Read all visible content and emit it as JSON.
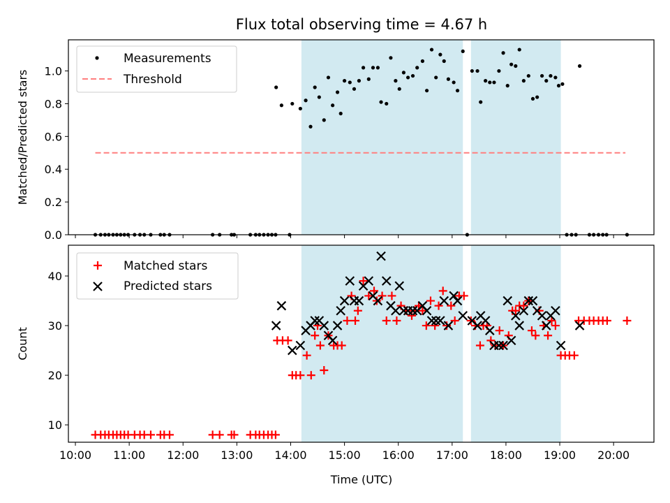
{
  "chart_data": {
    "type": "scatter",
    "title": "Flux total observing time = 4.67 h",
    "xlabel": "Time (UTC)",
    "x_tick_labels": [
      "10:00",
      "11:00",
      "12:00",
      "13:00",
      "14:00",
      "15:00",
      "16:00",
      "17:00",
      "18:00",
      "19:00",
      "20:00"
    ],
    "x_ticks_hours": [
      10,
      11,
      12,
      13,
      14,
      15,
      16,
      17,
      18,
      19,
      20
    ],
    "xlim_hours": [
      9.87,
      20.75
    ],
    "observing_windows_hours": [
      [
        14.2,
        17.2
      ],
      [
        17.35,
        19.02
      ]
    ],
    "colors": {
      "window": "#add8e6",
      "measurements": "#000000",
      "threshold": "#ff7f7f",
      "matched": "#ff0000",
      "predicted": "#000000"
    },
    "top": {
      "ylabel": "Matched/Predicted stars",
      "ylim": [
        0,
        1.19
      ],
      "y_ticks": [
        0,
        0.2,
        0.4,
        0.6,
        0.8,
        1.0
      ],
      "y_tick_labels": [
        "0.0",
        "0.2",
        "0.4",
        "0.6",
        "0.8",
        "1.0"
      ],
      "legend": {
        "position": "upper-left",
        "entries": [
          "Measurements",
          "Threshold"
        ]
      },
      "threshold": {
        "value": 0.5,
        "x_range_hours": [
          10.37,
          20.22
        ]
      },
      "measurements": [
        [
          10.37,
          0
        ],
        [
          10.47,
          0
        ],
        [
          10.55,
          0
        ],
        [
          10.62,
          0
        ],
        [
          10.7,
          0
        ],
        [
          10.77,
          0
        ],
        [
          10.84,
          0
        ],
        [
          10.91,
          0
        ],
        [
          10.98,
          0
        ],
        [
          11.1,
          0
        ],
        [
          11.2,
          0
        ],
        [
          11.28,
          0
        ],
        [
          11.4,
          0
        ],
        [
          11.58,
          0
        ],
        [
          11.65,
          0
        ],
        [
          11.75,
          0
        ],
        [
          12.55,
          0
        ],
        [
          12.68,
          0
        ],
        [
          12.9,
          0
        ],
        [
          12.95,
          0
        ],
        [
          13.25,
          0
        ],
        [
          13.35,
          0
        ],
        [
          13.42,
          0
        ],
        [
          13.5,
          0
        ],
        [
          13.58,
          0
        ],
        [
          13.65,
          0
        ],
        [
          13.72,
          0
        ],
        [
          13.98,
          0
        ],
        [
          13.73,
          0.9
        ],
        [
          13.83,
          0.79
        ],
        [
          14.03,
          0.8
        ],
        [
          14.18,
          0.77
        ],
        [
          14.28,
          0.82
        ],
        [
          14.37,
          0.66
        ],
        [
          14.45,
          0.9
        ],
        [
          14.53,
          0.84
        ],
        [
          14.62,
          0.7
        ],
        [
          14.7,
          0.96
        ],
        [
          14.78,
          0.79
        ],
        [
          14.87,
          0.87
        ],
        [
          14.93,
          0.74
        ],
        [
          15.0,
          0.94
        ],
        [
          15.1,
          0.93
        ],
        [
          15.18,
          0.89
        ],
        [
          15.27,
          0.94
        ],
        [
          15.35,
          1.02
        ],
        [
          15.45,
          0.95
        ],
        [
          15.53,
          1.02
        ],
        [
          15.62,
          1.02
        ],
        [
          15.68,
          0.81
        ],
        [
          15.78,
          0.8
        ],
        [
          15.86,
          1.08
        ],
        [
          15.95,
          0.94
        ],
        [
          16.02,
          0.89
        ],
        [
          16.1,
          0.99
        ],
        [
          16.18,
          0.96
        ],
        [
          16.27,
          0.97
        ],
        [
          16.35,
          1.02
        ],
        [
          16.45,
          1.06
        ],
        [
          16.53,
          0.88
        ],
        [
          16.62,
          1.13
        ],
        [
          16.7,
          0.96
        ],
        [
          16.78,
          1.1
        ],
        [
          16.85,
          1.06
        ],
        [
          16.93,
          0.95
        ],
        [
          17.03,
          0.93
        ],
        [
          17.1,
          0.88
        ],
        [
          17.2,
          1.12
        ],
        [
          17.28,
          0
        ],
        [
          17.37,
          1.0
        ],
        [
          17.47,
          1.0
        ],
        [
          17.53,
          0.81
        ],
        [
          17.62,
          0.94
        ],
        [
          17.7,
          0.93
        ],
        [
          17.78,
          0.93
        ],
        [
          17.87,
          1.0
        ],
        [
          17.95,
          1.11
        ],
        [
          18.03,
          0.91
        ],
        [
          18.1,
          1.04
        ],
        [
          18.18,
          1.03
        ],
        [
          18.25,
          1.13
        ],
        [
          18.33,
          0.94
        ],
        [
          18.42,
          0.97
        ],
        [
          18.5,
          0.83
        ],
        [
          18.58,
          0.84
        ],
        [
          18.67,
          0.97
        ],
        [
          18.75,
          0.94
        ],
        [
          18.83,
          0.97
        ],
        [
          18.92,
          0.96
        ],
        [
          18.98,
          0.91
        ],
        [
          19.05,
          0.92
        ],
        [
          19.13,
          0
        ],
        [
          19.22,
          0
        ],
        [
          19.3,
          0
        ],
        [
          19.37,
          1.03
        ],
        [
          19.55,
          0
        ],
        [
          19.63,
          0
        ],
        [
          19.72,
          0
        ],
        [
          19.8,
          0
        ],
        [
          19.87,
          0
        ],
        [
          20.25,
          0
        ]
      ]
    },
    "bottom": {
      "ylabel": "Count",
      "ylim": [
        6.5,
        46.2
      ],
      "y_ticks": [
        10,
        20,
        30,
        40
      ],
      "y_tick_labels": [
        "10",
        "20",
        "30",
        "40"
      ],
      "legend": {
        "position": "upper-left",
        "entries": [
          "Matched stars",
          "Predicted stars"
        ]
      },
      "matched": [
        [
          10.37,
          8
        ],
        [
          10.47,
          8
        ],
        [
          10.55,
          8
        ],
        [
          10.62,
          8
        ],
        [
          10.7,
          8
        ],
        [
          10.77,
          8
        ],
        [
          10.84,
          8
        ],
        [
          10.91,
          8
        ],
        [
          10.98,
          8
        ],
        [
          11.1,
          8
        ],
        [
          11.2,
          8
        ],
        [
          11.28,
          8
        ],
        [
          11.4,
          8
        ],
        [
          11.58,
          8
        ],
        [
          11.65,
          8
        ],
        [
          11.75,
          8
        ],
        [
          12.55,
          8
        ],
        [
          12.68,
          8
        ],
        [
          12.9,
          8
        ],
        [
          12.95,
          8
        ],
        [
          13.25,
          8
        ],
        [
          13.35,
          8
        ],
        [
          13.42,
          8
        ],
        [
          13.5,
          8
        ],
        [
          13.58,
          8
        ],
        [
          13.65,
          8
        ],
        [
          13.72,
          8
        ],
        [
          13.75,
          27
        ],
        [
          13.85,
          27
        ],
        [
          13.95,
          27
        ],
        [
          14.03,
          20
        ],
        [
          14.1,
          20
        ],
        [
          14.18,
          20
        ],
        [
          14.3,
          24
        ],
        [
          14.38,
          20
        ],
        [
          14.45,
          28
        ],
        [
          14.5,
          30
        ],
        [
          14.55,
          26
        ],
        [
          14.62,
          21
        ],
        [
          14.7,
          28
        ],
        [
          14.8,
          26
        ],
        [
          14.87,
          26
        ],
        [
          14.95,
          26
        ],
        [
          15.05,
          31
        ],
        [
          15.13,
          36
        ],
        [
          15.2,
          31
        ],
        [
          15.25,
          33
        ],
        [
          15.35,
          39
        ],
        [
          15.45,
          36
        ],
        [
          15.55,
          37
        ],
        [
          15.6,
          35
        ],
        [
          15.7,
          36
        ],
        [
          15.78,
          31
        ],
        [
          15.88,
          36
        ],
        [
          15.97,
          31
        ],
        [
          16.05,
          34
        ],
        [
          16.15,
          33
        ],
        [
          16.25,
          32
        ],
        [
          16.3,
          33
        ],
        [
          16.38,
          34
        ],
        [
          16.45,
          33
        ],
        [
          16.52,
          30
        ],
        [
          16.6,
          35
        ],
        [
          16.68,
          30
        ],
        [
          16.75,
          34
        ],
        [
          16.83,
          37
        ],
        [
          16.9,
          30
        ],
        [
          16.98,
          34
        ],
        [
          17.05,
          31
        ],
        [
          17.13,
          36
        ],
        [
          17.22,
          36
        ],
        [
          17.35,
          31
        ],
        [
          17.43,
          30
        ],
        [
          17.52,
          26
        ],
        [
          17.58,
          30
        ],
        [
          17.65,
          30
        ],
        [
          17.72,
          27
        ],
        [
          17.8,
          26
        ],
        [
          17.88,
          29
        ],
        [
          17.95,
          26
        ],
        [
          18.05,
          28
        ],
        [
          18.12,
          33
        ],
        [
          18.18,
          33
        ],
        [
          18.25,
          34
        ],
        [
          18.33,
          34
        ],
        [
          18.42,
          35
        ],
        [
          18.48,
          29
        ],
        [
          18.55,
          28
        ],
        [
          18.62,
          33
        ],
        [
          18.7,
          30
        ],
        [
          18.78,
          28
        ],
        [
          18.85,
          31
        ],
        [
          18.92,
          30
        ],
        [
          19.02,
          24
        ],
        [
          19.1,
          24
        ],
        [
          19.18,
          24
        ],
        [
          19.27,
          24
        ],
        [
          19.35,
          31
        ],
        [
          19.45,
          31
        ],
        [
          19.55,
          31
        ],
        [
          19.63,
          31
        ],
        [
          19.72,
          31
        ],
        [
          19.8,
          31
        ],
        [
          19.88,
          31
        ],
        [
          20.25,
          31
        ]
      ],
      "predicted": [
        [
          13.73,
          30
        ],
        [
          13.83,
          34
        ],
        [
          14.03,
          25
        ],
        [
          14.18,
          26
        ],
        [
          14.28,
          29
        ],
        [
          14.37,
          30
        ],
        [
          14.45,
          31
        ],
        [
          14.53,
          31
        ],
        [
          14.62,
          30
        ],
        [
          14.7,
          28
        ],
        [
          14.78,
          27
        ],
        [
          14.87,
          30
        ],
        [
          14.93,
          33
        ],
        [
          15.0,
          35
        ],
        [
          15.1,
          39
        ],
        [
          15.18,
          35
        ],
        [
          15.27,
          35
        ],
        [
          15.35,
          38
        ],
        [
          15.45,
          39
        ],
        [
          15.53,
          36
        ],
        [
          15.62,
          35
        ],
        [
          15.68,
          44
        ],
        [
          15.78,
          39
        ],
        [
          15.86,
          34
        ],
        [
          15.95,
          33
        ],
        [
          16.02,
          38
        ],
        [
          16.1,
          33
        ],
        [
          16.18,
          33
        ],
        [
          16.27,
          33
        ],
        [
          16.35,
          33
        ],
        [
          16.45,
          34
        ],
        [
          16.53,
          33
        ],
        [
          16.62,
          31
        ],
        [
          16.7,
          31
        ],
        [
          16.78,
          31
        ],
        [
          16.85,
          35
        ],
        [
          16.93,
          30
        ],
        [
          17.03,
          36
        ],
        [
          17.1,
          35
        ],
        [
          17.2,
          32
        ],
        [
          17.37,
          31
        ],
        [
          17.47,
          30
        ],
        [
          17.53,
          32
        ],
        [
          17.62,
          31
        ],
        [
          17.7,
          29
        ],
        [
          17.78,
          26
        ],
        [
          17.87,
          26
        ],
        [
          17.95,
          26
        ],
        [
          18.03,
          35
        ],
        [
          18.1,
          27
        ],
        [
          18.18,
          32
        ],
        [
          18.25,
          30
        ],
        [
          18.33,
          33
        ],
        [
          18.42,
          35
        ],
        [
          18.5,
          35
        ],
        [
          18.58,
          33
        ],
        [
          18.67,
          32
        ],
        [
          18.75,
          30
        ],
        [
          18.83,
          32
        ],
        [
          18.92,
          33
        ],
        [
          19.02,
          26
        ],
        [
          19.37,
          30
        ]
      ]
    }
  }
}
